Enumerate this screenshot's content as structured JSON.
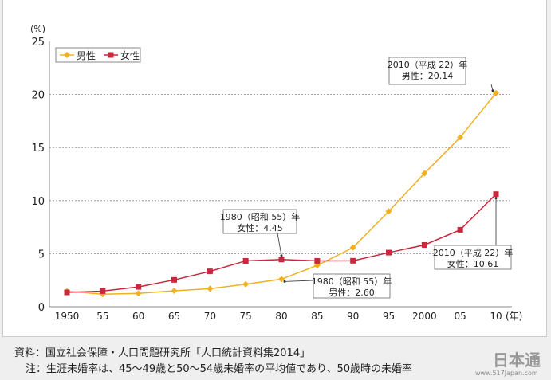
{
  "chart_data": {
    "type": "line",
    "x": [
      "1950",
      "55",
      "60",
      "65",
      "70",
      "75",
      "80",
      "85",
      "90",
      "95",
      "2000",
      "05",
      "10"
    ],
    "x_unit": "(年)",
    "y_unit": "(%)",
    "ylim": [
      0,
      25
    ],
    "yticks": [
      0,
      5,
      10,
      15,
      20,
      25
    ],
    "grid": "horizontal dashed",
    "legend": "top-left",
    "series": [
      {
        "name": "男性",
        "color": "#f0b020",
        "marker": "diamond",
        "values": [
          1.46,
          1.18,
          1.26,
          1.5,
          1.7,
          2.12,
          2.6,
          3.89,
          5.57,
          8.99,
          12.57,
          15.96,
          20.14
        ]
      },
      {
        "name": "女性",
        "color": "#c8283c",
        "marker": "square",
        "values": [
          1.35,
          1.47,
          1.87,
          2.53,
          3.33,
          4.32,
          4.45,
          4.32,
          4.33,
          5.1,
          5.82,
          7.25,
          10.61
        ]
      }
    ],
    "annotations": [
      {
        "line1": "2010（平成 22）年",
        "line2": "男性：20.14"
      },
      {
        "line1": "1980（昭和 55）年",
        "line2": "女性：4.45"
      },
      {
        "line1": "1980（昭和 55）年",
        "line2": "男性：2.60"
      },
      {
        "line1": "2010（平成 22）年",
        "line2": "女性：10.61"
      }
    ]
  },
  "footer": {
    "source": "資料：国立社会保障・人口問題研究所「人口統計資料集2014」",
    "note": "注：生涯未婚率は、45～49歳と50～54歳未婚率の平均値であり、50歳時の未婚率"
  },
  "logo": {
    "text": "日本通",
    "url": "www.517Japan.com"
  }
}
